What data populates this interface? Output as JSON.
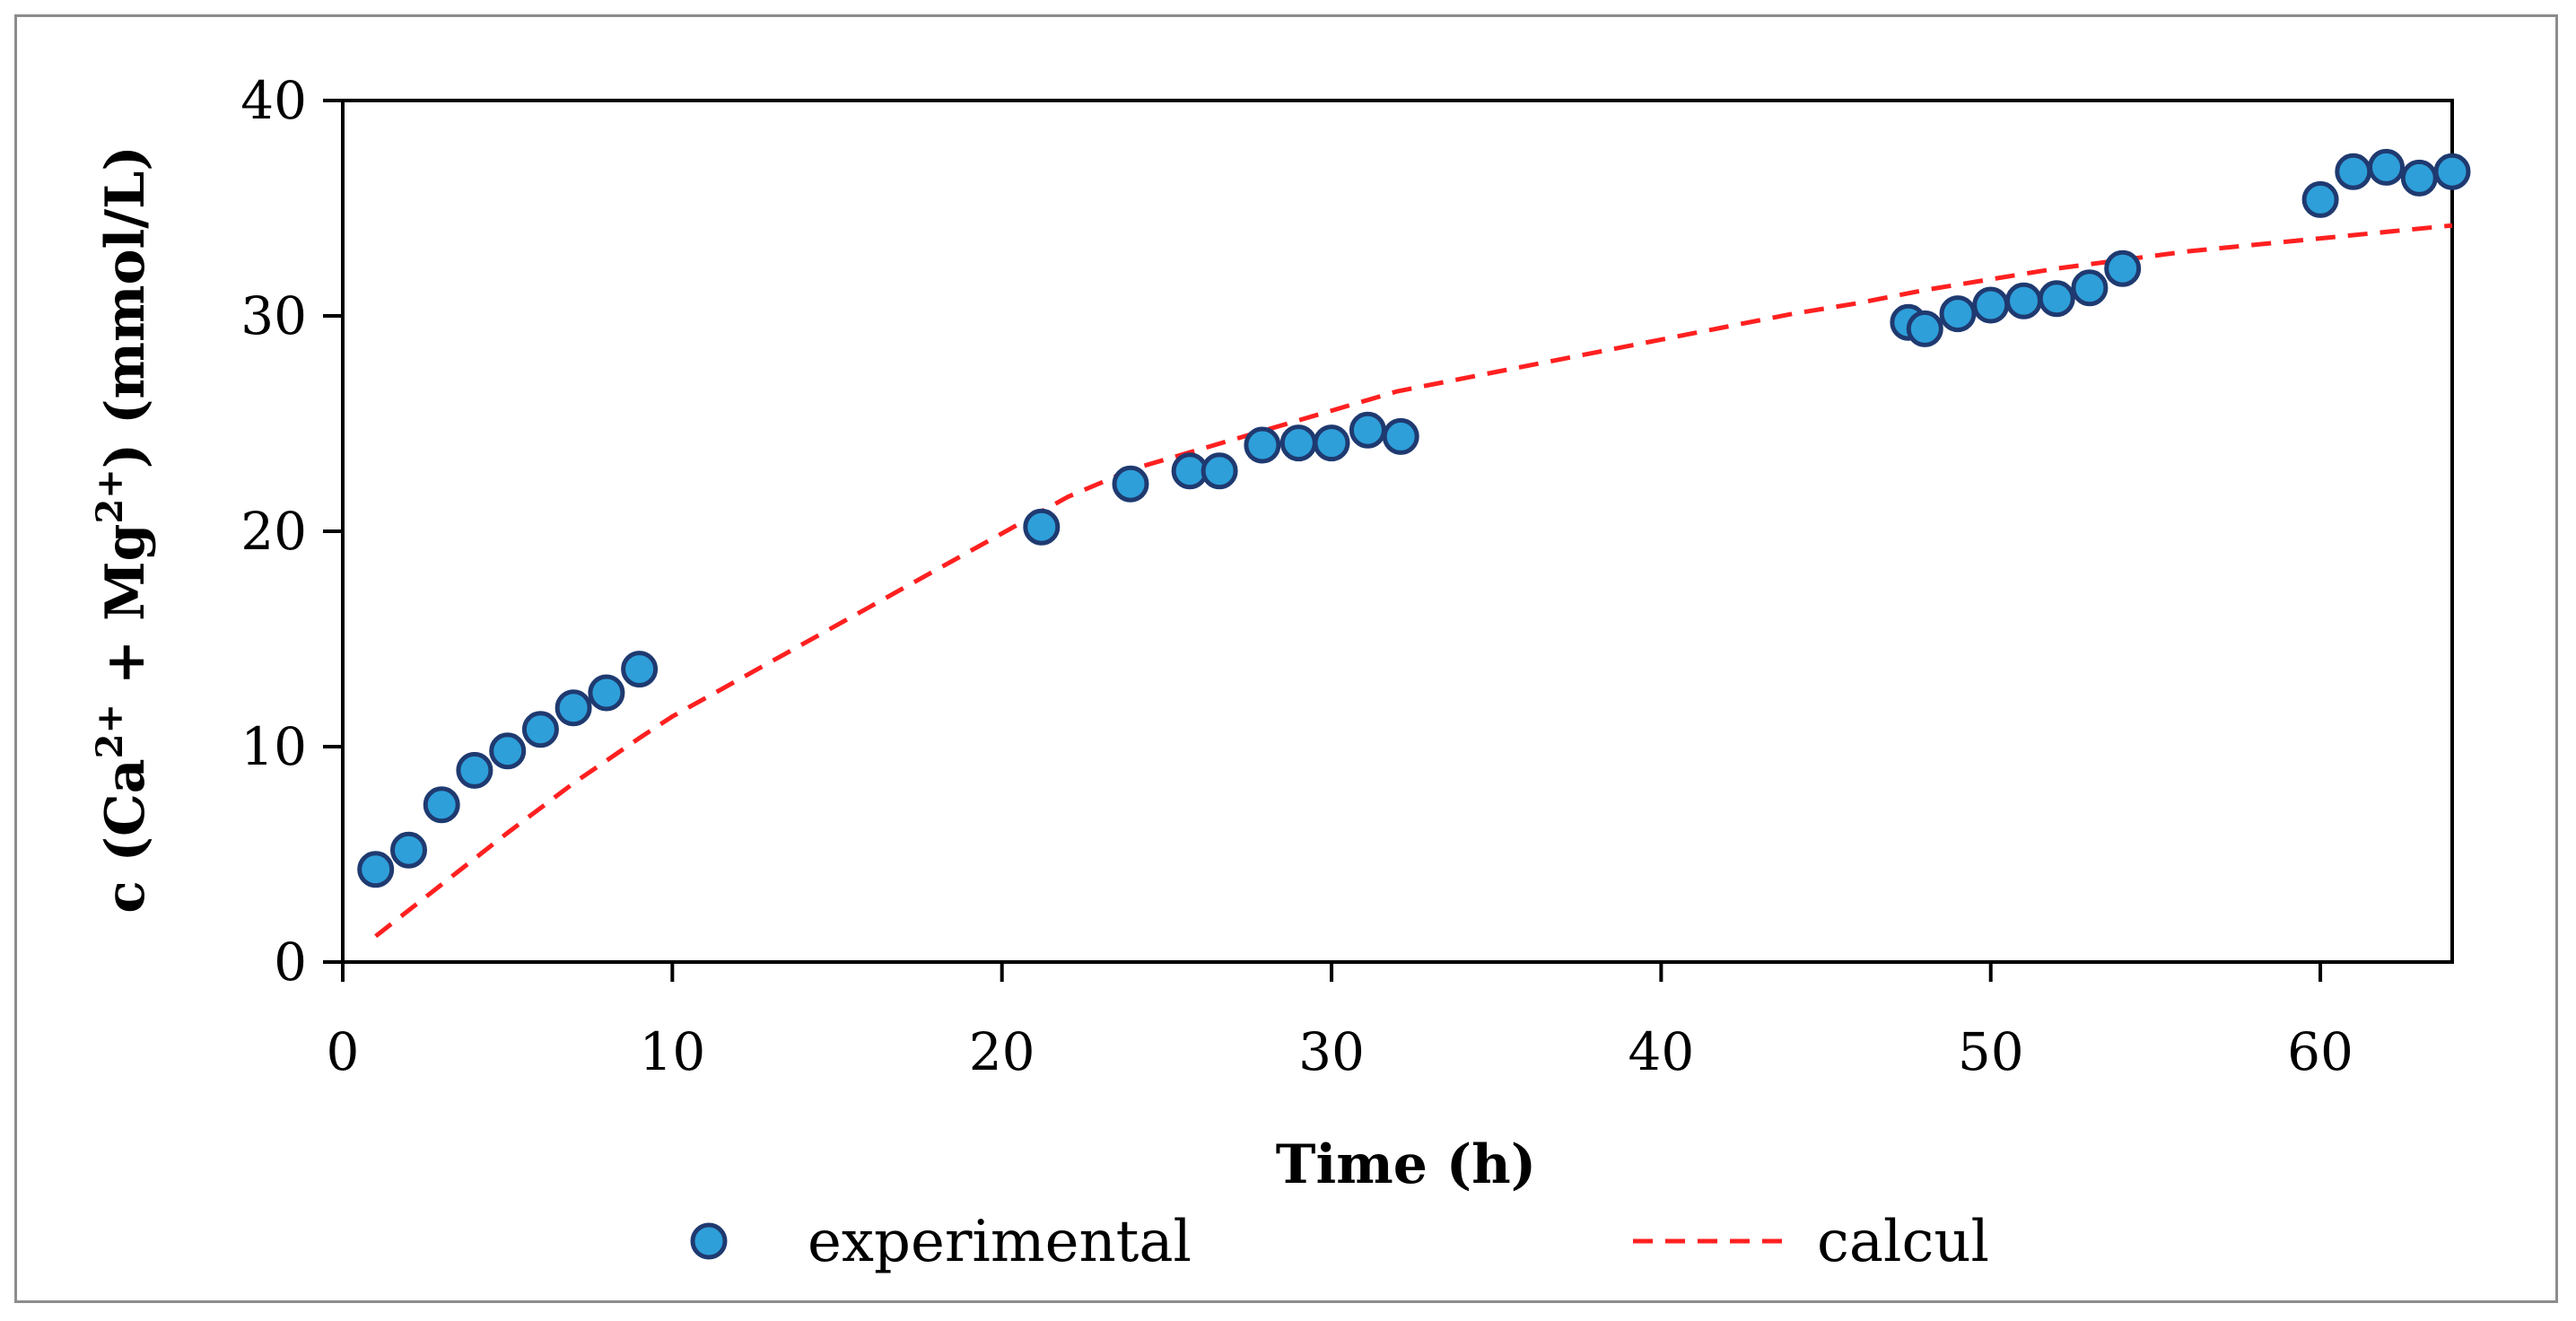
{
  "chart_data": {
    "type": "scatter",
    "title": "",
    "xlabel": "Time (h)",
    "ylabel": "c (Ca2+ + Mg2+) (mmol/L)",
    "ylabel_parts": {
      "pre": "c (Ca",
      "sup1": "2+",
      "mid": " + Mg",
      "sup2": "2+",
      "post": ") (mmol/L)"
    },
    "xlim": [
      0,
      64
    ],
    "ylim": [
      0,
      40
    ],
    "xticks": [
      "0",
      "10",
      "20",
      "30",
      "40",
      "50",
      "60"
    ],
    "yticks": [
      "0",
      "10",
      "20",
      "30",
      "40"
    ],
    "grid": false,
    "legend_position": "bottom",
    "series": [
      {
        "name": "experimental",
        "kind": "scatter",
        "marker_fill": "#2e9fd9",
        "marker_edge": "#1f3a70",
        "x": [
          1,
          2,
          3,
          4,
          5,
          6,
          7,
          8,
          9,
          21.2,
          23.9,
          25.7,
          26.6,
          27.9,
          29,
          30,
          31.1,
          32.1,
          47.5,
          48,
          49,
          50,
          51,
          52,
          53,
          54,
          60,
          61,
          62,
          63,
          64
        ],
        "y": [
          4.3,
          5.2,
          7.3,
          8.9,
          9.8,
          10.8,
          11.8,
          12.5,
          13.6,
          20.2,
          22.2,
          22.8,
          22.8,
          24,
          24.1,
          24.1,
          24.7,
          24.4,
          29.7,
          29.4,
          30.1,
          30.5,
          30.7,
          30.8,
          31.3,
          32.2,
          35.4,
          36.7,
          36.9,
          36.4,
          36.7
        ]
      },
      {
        "name": "calcul",
        "kind": "line",
        "color": "#ff2020",
        "dashed": true,
        "x": [
          1,
          3,
          5,
          7,
          9,
          10,
          12,
          14,
          16,
          18,
          20,
          22,
          24,
          26,
          28,
          30,
          32,
          34,
          36,
          38,
          40,
          42,
          44,
          46,
          48,
          50,
          52,
          54,
          56,
          58,
          60,
          62,
          64
        ],
        "y": [
          1.2,
          3.6,
          6.0,
          8.3,
          10.4,
          11.4,
          13.1,
          14.8,
          16.5,
          18.2,
          19.9,
          21.6,
          22.9,
          23.8,
          24.7,
          25.6,
          26.5,
          27.1,
          27.7,
          28.3,
          28.9,
          29.5,
          30.1,
          30.6,
          31.2,
          31.7,
          32.2,
          32.6,
          33.0,
          33.3,
          33.6,
          33.9,
          34.2
        ]
      }
    ]
  }
}
